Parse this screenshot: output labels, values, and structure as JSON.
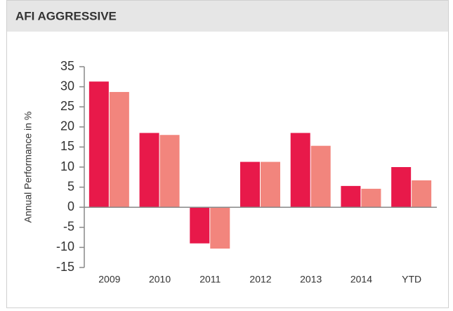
{
  "chart_data": {
    "type": "bar",
    "title": "AFI AGGRESSIVE",
    "y_label": "Annual Performance in %",
    "categories": [
      "2009",
      "2010",
      "2011",
      "2012",
      "2013",
      "2014",
      "YTD"
    ],
    "series": [
      {
        "color": "#e8194a",
        "values": [
          31.3,
          18.5,
          -9,
          11.3,
          18.5,
          5.3,
          10
        ]
      },
      {
        "color": "#f2857d",
        "values": [
          28.7,
          18,
          -10.3,
          11.3,
          15.3,
          4.6,
          6.7
        ]
      }
    ],
    "ylim": [
      -15,
      35
    ],
    "yticks": [
      -15,
      -10,
      -5,
      0,
      5,
      10,
      15,
      20,
      25,
      30,
      35
    ],
    "grid": false
  }
}
